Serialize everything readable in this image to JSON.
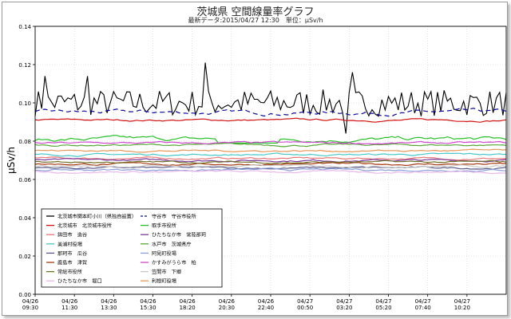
{
  "chart_data": {
    "type": "line",
    "title": "茨城県 空間線量率グラフ",
    "subtitle": "最新データ:2015/04/27 12:30　単位：μSv/h",
    "ylabel": "μSv/h",
    "xlabel": "",
    "ylim": [
      0,
      0.14
    ],
    "y_ticks": [
      "0.00",
      "0.02",
      "0.04",
      "0.06",
      "0.08",
      "0.10",
      "0.12",
      "0.14"
    ],
    "x_ticks": [
      {
        "date": "04/26",
        "time": "09:30"
      },
      {
        "date": "04/26",
        "time": "11:30"
      },
      {
        "date": "04/26",
        "time": "13:30"
      },
      {
        "date": "04/26",
        "time": "15:30"
      },
      {
        "date": "04/26",
        "time": "18:20"
      },
      {
        "date": "04/26",
        "time": "20:30"
      },
      {
        "date": "04/26",
        "time": "22:40"
      },
      {
        "date": "04/27",
        "time": "00:50"
      },
      {
        "date": "04/27",
        "time": "03:20"
      },
      {
        "date": "04/27",
        "time": "05:20"
      },
      {
        "date": "04/27",
        "time": "07:40"
      },
      {
        "date": "04/27",
        "time": "10:20"
      }
    ],
    "grid": true,
    "legend_position": "bottom-left",
    "series": [
      {
        "name": "北茨城市関本町小川（県独自設置）",
        "color": "#000000",
        "dash": "solid",
        "base": 0.1,
        "amp": 0.007,
        "noise": "jagged"
      },
      {
        "name": "守谷市　守谷市役所",
        "color": "#0a0a9a",
        "dash": "dashed",
        "base": 0.095,
        "amp": 0.002,
        "noise": "smooth"
      },
      {
        "name": "北茨城市　北茨城市役所",
        "color": "#d01414",
        "dash": "solid",
        "base": 0.091,
        "amp": 0.001,
        "noise": "smooth"
      },
      {
        "name": "取手市役所",
        "color": "#28c028",
        "dash": "solid",
        "base": 0.081,
        "amp": 0.002,
        "noise": "smooth"
      },
      {
        "name": "鉾田市　造谷",
        "color": "#e87878",
        "dash": "solid",
        "base": 0.071,
        "amp": 0.001,
        "noise": "smooth"
      },
      {
        "name": "ひたちなか市　常陸那珂",
        "color": "#7a3a9a",
        "dash": "solid",
        "base": 0.07,
        "amp": 0.001,
        "noise": "smooth"
      },
      {
        "name": "美浦村役場",
        "color": "#48c8c8",
        "dash": "solid",
        "base": 0.073,
        "amp": 0.001,
        "noise": "smooth"
      },
      {
        "name": "水戸市　茨城県庁",
        "color": "#58a838",
        "dash": "solid",
        "base": 0.078,
        "amp": 0.001,
        "noise": "smooth"
      },
      {
        "name": "那珂市　瓜谷",
        "color": "#5a5a8a",
        "dash": "solid",
        "base": 0.066,
        "amp": 0.001,
        "noise": "smooth"
      },
      {
        "name": "阿見町役場",
        "color": "#8aa0d8",
        "dash": "solid",
        "base": 0.065,
        "amp": 0.001,
        "noise": "smooth"
      },
      {
        "name": "鹿島市　津賀",
        "color": "#a83a14",
        "dash": "solid",
        "base": 0.068,
        "amp": 0.001,
        "noise": "smooth"
      },
      {
        "name": "かすみがうら市　柏",
        "color": "#d048d0",
        "dash": "solid",
        "base": 0.079,
        "amp": 0.001,
        "noise": "smooth"
      },
      {
        "name": "常総市役所",
        "color": "#707028",
        "dash": "solid",
        "base": 0.069,
        "amp": 0.001,
        "noise": "smooth"
      },
      {
        "name": "笠間市　下郷",
        "color": "#c8c8c8",
        "dash": "solid",
        "base": 0.067,
        "amp": 0.001,
        "noise": "smooth"
      },
      {
        "name": "ひたちなか市　堀口",
        "color": "#e8b8e8",
        "dash": "solid",
        "base": 0.064,
        "amp": 0.001,
        "noise": "smooth"
      },
      {
        "name": "利根町役場",
        "color": "#e89858",
        "dash": "solid",
        "base": 0.075,
        "amp": 0.001,
        "noise": "smooth"
      }
    ]
  }
}
